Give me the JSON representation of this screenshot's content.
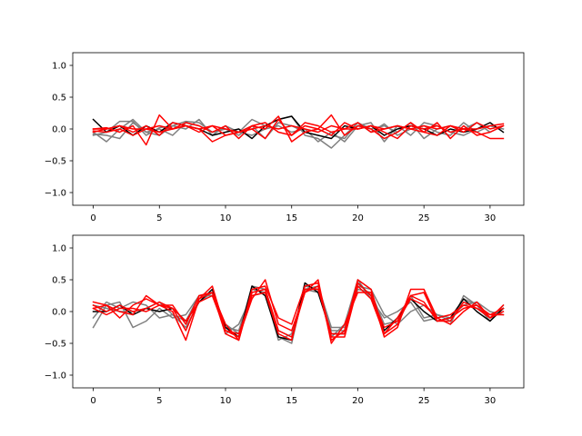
{
  "chart_data": [
    {
      "type": "line",
      "title": "",
      "xlabel": "",
      "ylabel": "",
      "xlim": [
        -1.55,
        32.55
      ],
      "ylim": [
        -1.2,
        1.2
      ],
      "xticks": [
        0,
        5,
        10,
        15,
        20,
        25,
        30
      ],
      "yticks": [
        -1.0,
        -0.5,
        0.0,
        0.5,
        1.0
      ],
      "ytick_labels": [
        "−1.0",
        "−0.5",
        "0.0",
        "0.5",
        "1.0"
      ],
      "grid": false,
      "x": [
        0,
        1,
        2,
        3,
        4,
        5,
        6,
        7,
        8,
        9,
        10,
        11,
        12,
        13,
        14,
        15,
        16,
        17,
        18,
        19,
        20,
        21,
        22,
        23,
        24,
        25,
        26,
        27,
        28,
        29,
        30,
        31
      ],
      "series": [
        {
          "color": "#7f7f7f",
          "values": [
            -0.1,
            -0.05,
            0.12,
            0.12,
            -0.1,
            0.02,
            0.05,
            0.12,
            0.1,
            -0.05,
            0.0,
            -0.05,
            0.15,
            0.05,
            0.15,
            0.2,
            -0.1,
            -0.15,
            -0.3,
            -0.1,
            0.1,
            -0.05,
            0.08,
            -0.1,
            0.0,
            0.05,
            -0.05,
            -0.1,
            0.1,
            -0.05,
            0.05,
            0.0
          ]
        },
        {
          "color": "#7f7f7f",
          "values": [
            -0.05,
            -0.2,
            0.0,
            0.15,
            -0.05,
            -0.1,
            0.05,
            0.0,
            0.15,
            -0.1,
            0.05,
            -0.05,
            -0.1,
            0.0,
            0.05,
            -0.05,
            0.0,
            -0.2,
            -0.05,
            -0.2,
            0.05,
            0.1,
            -0.2,
            0.05,
            -0.1,
            0.1,
            0.05,
            -0.05,
            -0.1,
            0.0,
            0.05,
            0.0
          ]
        },
        {
          "color": "#7f7f7f",
          "values": [
            -0.08,
            -0.1,
            -0.15,
            0.1,
            -0.05,
            0.0,
            -0.1,
            0.1,
            0.05,
            -0.05,
            0.0,
            -0.1,
            0.05,
            -0.15,
            0.1,
            0.05,
            -0.05,
            0.0,
            -0.1,
            -0.15,
            0.1,
            0.0,
            0.05,
            -0.05,
            0.1,
            -0.15,
            0.0,
            0.05,
            0.0,
            0.1,
            -0.05,
            0.05
          ]
        },
        {
          "color": "#000000",
          "values": [
            0.15,
            -0.05,
            0.05,
            -0.1,
            0.05,
            -0.05,
            0.1,
            0.05,
            0.0,
            -0.1,
            -0.05,
            0.0,
            -0.15,
            0.05,
            0.15,
            0.2,
            -0.05,
            -0.1,
            -0.15,
            0.05,
            0.0,
            0.05,
            -0.1,
            0.0,
            0.05,
            0.0,
            -0.1,
            0.0,
            -0.05,
            0.0,
            0.1,
            -0.05
          ]
        },
        {
          "color": "#ff0000",
          "values": [
            0.0,
            0.02,
            -0.05,
            0.05,
            -0.25,
            0.22,
            0.0,
            0.05,
            0.0,
            -0.2,
            -0.1,
            -0.05,
            0.0,
            -0.15,
            0.15,
            -0.1,
            0.05,
            0.0,
            0.22,
            -0.1,
            0.05,
            0.0,
            -0.15,
            -0.05,
            0.1,
            -0.05,
            0.1,
            -0.15,
            0.05,
            -0.1,
            -0.05,
            0.05
          ]
        },
        {
          "color": "#ff0000",
          "values": [
            -0.05,
            0.0,
            0.05,
            -0.05,
            0.05,
            -0.1,
            0.1,
            0.05,
            -0.05,
            0.05,
            -0.1,
            -0.05,
            0.05,
            0.1,
            -0.05,
            -0.1,
            0.1,
            0.05,
            -0.05,
            0.0,
            0.1,
            -0.05,
            0.0,
            0.05,
            0.0,
            -0.05,
            -0.1,
            0.05,
            -0.05,
            0.1,
            0.0,
            0.05
          ]
        },
        {
          "color": "#ff0000",
          "values": [
            -0.03,
            -0.05,
            0.0,
            -0.1,
            0.0,
            0.05,
            0.0,
            0.1,
            0.05,
            -0.05,
            0.05,
            -0.15,
            0.05,
            0.0,
            0.2,
            -0.2,
            -0.05,
            0.0,
            -0.1,
            0.1,
            0.0,
            0.05,
            -0.05,
            -0.15,
            0.05,
            0.0,
            0.05,
            -0.05,
            0.0,
            -0.05,
            -0.15,
            -0.15
          ]
        },
        {
          "color": "#ff0000",
          "values": [
            0.0,
            0.0,
            0.05,
            0.0,
            0.0,
            -0.05,
            0.0,
            0.05,
            0.0,
            0.05,
            0.0,
            -0.05,
            0.0,
            0.05,
            0.0,
            0.05,
            0.0,
            -0.05,
            0.05,
            0.0,
            0.0,
            0.05,
            0.0,
            0.05,
            0.0,
            0.05,
            0.0,
            0.05,
            0.0,
            0.0,
            0.05,
            0.08
          ]
        }
      ]
    },
    {
      "type": "line",
      "title": "",
      "xlabel": "",
      "ylabel": "",
      "xlim": [
        -1.55,
        32.55
      ],
      "ylim": [
        -1.2,
        1.2
      ],
      "xticks": [
        0,
        5,
        10,
        15,
        20,
        25,
        30
      ],
      "yticks": [
        -1.0,
        -0.5,
        0.0,
        0.5,
        1.0
      ],
      "ytick_labels": [
        "−1.0",
        "−0.5",
        "0.0",
        "0.5",
        "1.0"
      ],
      "grid": false,
      "x": [
        0,
        1,
        2,
        3,
        4,
        5,
        6,
        7,
        8,
        9,
        10,
        11,
        12,
        13,
        14,
        15,
        16,
        17,
        18,
        19,
        20,
        21,
        22,
        23,
        24,
        25,
        26,
        27,
        28,
        29,
        30,
        31
      ],
      "series": [
        {
          "color": "#7f7f7f",
          "values": [
            -0.25,
            0.1,
            0.15,
            -0.25,
            -0.15,
            0.05,
            -0.1,
            -0.05,
            0.25,
            0.3,
            -0.25,
            -0.3,
            0.35,
            0.3,
            -0.4,
            -0.5,
            0.4,
            0.35,
            -0.4,
            -0.2,
            0.5,
            0.2,
            -0.1,
            0.0,
            0.15,
            -0.15,
            -0.1,
            -0.2,
            0.25,
            0.1,
            -0.1,
            0.05
          ]
        },
        {
          "color": "#7f7f7f",
          "values": [
            -0.1,
            0.15,
            0.05,
            0.15,
            0.1,
            -0.1,
            -0.05,
            -0.15,
            0.25,
            0.25,
            -0.2,
            -0.35,
            0.4,
            0.35,
            -0.3,
            -0.4,
            0.35,
            0.3,
            -0.3,
            -0.3,
            0.4,
            0.35,
            -0.05,
            -0.2,
            0.0,
            0.1,
            -0.05,
            -0.15,
            0.2,
            0.1,
            -0.15,
            0.1
          ]
        },
        {
          "color": "#7f7f7f",
          "values": [
            0.1,
            0.05,
            0.0,
            0.0,
            0.05,
            0.15,
            -0.05,
            -0.25,
            0.15,
            0.3,
            -0.35,
            -0.2,
            0.25,
            0.3,
            -0.45,
            -0.35,
            0.35,
            0.4,
            -0.25,
            -0.25,
            0.35,
            0.3,
            -0.2,
            -0.15,
            0.25,
            -0.1,
            -0.05,
            -0.1,
            0.1,
            0.15,
            0.0,
            -0.05
          ]
        },
        {
          "color": "#000000",
          "values": [
            0.0,
            0.0,
            0.1,
            -0.05,
            0.05,
            0.0,
            0.05,
            -0.15,
            0.15,
            0.35,
            -0.25,
            -0.4,
            0.4,
            0.25,
            -0.4,
            -0.45,
            0.45,
            0.3,
            -0.35,
            -0.35,
            0.45,
            0.25,
            -0.3,
            -0.1,
            0.2,
            0.0,
            -0.15,
            -0.1,
            0.2,
            0.0,
            -0.15,
            0.05
          ]
        },
        {
          "color": "#ff0000",
          "values": [
            0.15,
            0.1,
            -0.1,
            0.1,
            0.2,
            0.1,
            0.0,
            -0.45,
            0.2,
            0.4,
            -0.3,
            -0.4,
            0.2,
            0.5,
            -0.2,
            -0.3,
            0.3,
            0.5,
            -0.5,
            -0.2,
            0.3,
            0.3,
            -0.4,
            -0.25,
            0.35,
            0.35,
            -0.1,
            -0.2,
            0.0,
            0.15,
            -0.1,
            0.1
          ]
        },
        {
          "color": "#ff0000",
          "values": [
            0.05,
            0.1,
            0.0,
            -0.05,
            0.25,
            0.1,
            0.1,
            -0.2,
            0.25,
            0.3,
            -0.2,
            -0.45,
            0.35,
            0.4,
            -0.1,
            -0.2,
            0.4,
            0.45,
            -0.4,
            -0.4,
            0.4,
            0.2,
            -0.35,
            -0.1,
            0.25,
            0.3,
            -0.15,
            -0.1,
            0.05,
            0.1,
            -0.05,
            0.05
          ]
        },
        {
          "color": "#ff0000",
          "values": [
            0.1,
            0.0,
            0.1,
            0.0,
            0.05,
            0.15,
            0.05,
            -0.3,
            0.2,
            0.3,
            -0.35,
            -0.45,
            0.3,
            0.35,
            -0.3,
            -0.4,
            0.3,
            0.4,
            -0.45,
            -0.3,
            0.5,
            0.35,
            -0.35,
            -0.2,
            0.25,
            0.15,
            -0.15,
            -0.15,
            0.15,
            0.05,
            -0.1,
            0.0
          ]
        },
        {
          "color": "#ff0000",
          "values": [
            0.05,
            -0.05,
            0.05,
            0.05,
            0.0,
            0.1,
            0.05,
            -0.15,
            0.15,
            0.25,
            -0.3,
            -0.35,
            0.25,
            0.3,
            -0.35,
            -0.45,
            0.35,
            0.35,
            -0.35,
            -0.35,
            0.45,
            0.25,
            -0.25,
            -0.15,
            0.2,
            0.1,
            -0.1,
            -0.05,
            0.1,
            0.05,
            -0.05,
            -0.05
          ]
        }
      ]
    }
  ]
}
